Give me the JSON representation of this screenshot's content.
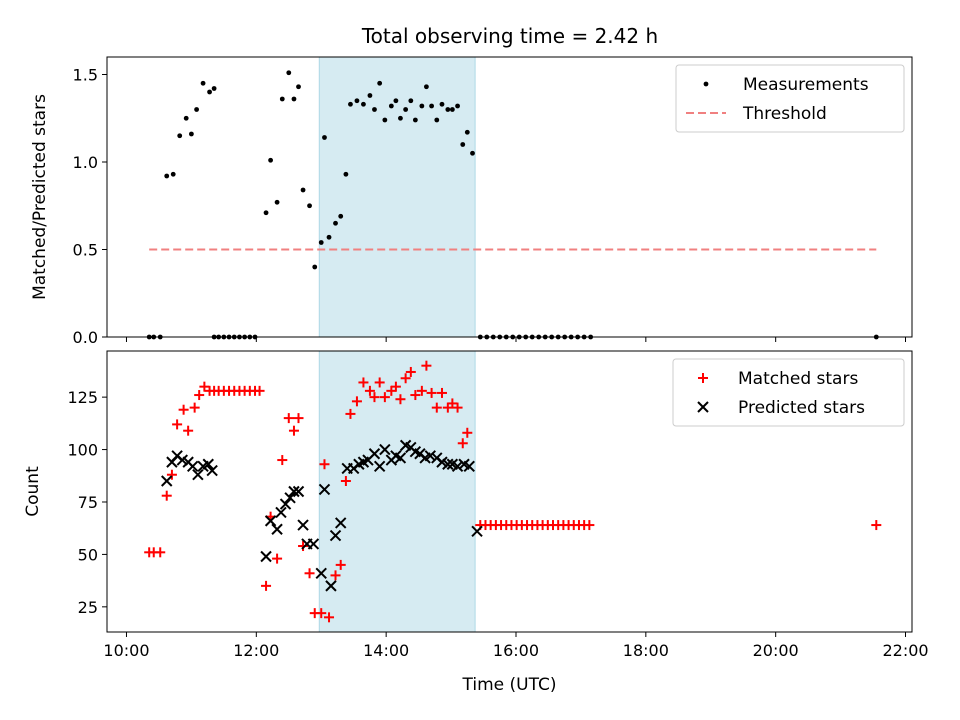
{
  "figure": {
    "title": "Total observing time = 2.42 h"
  },
  "chart_data": [
    {
      "type": "scatter",
      "ylabel": "Matched/Predicted stars",
      "xlabel": "",
      "xlim": [
        9.7,
        22.1
      ],
      "ylim": [
        0,
        1.6
      ],
      "x_ticks": [
        "10:00",
        "12:00",
        "14:00",
        "16:00",
        "18:00",
        "20:00",
        "22:00"
      ],
      "y_ticks": [
        "0.0",
        "0.5",
        "1.0",
        "1.5"
      ],
      "highlight_span": [
        12.97,
        15.37
      ],
      "highlight_color": "#add8e6",
      "legend_position": "upper right",
      "series": [
        {
          "name": "Measurements",
          "marker": "dot",
          "color": "#000000",
          "points": [
            [
              10.35,
              0.0
            ],
            [
              10.42,
              0.0
            ],
            [
              10.52,
              0.0
            ],
            [
              10.62,
              0.92
            ],
            [
              10.72,
              0.93
            ],
            [
              10.82,
              1.15
            ],
            [
              10.92,
              1.25
            ],
            [
              11.0,
              1.16
            ],
            [
              11.08,
              1.3
            ],
            [
              11.18,
              1.45
            ],
            [
              11.28,
              1.4
            ],
            [
              11.35,
              1.42
            ],
            [
              11.35,
              0.0
            ],
            [
              11.42,
              0.0
            ],
            [
              11.5,
              0.0
            ],
            [
              11.58,
              0.0
            ],
            [
              11.66,
              0.0
            ],
            [
              11.74,
              0.0
            ],
            [
              11.82,
              0.0
            ],
            [
              11.9,
              0.0
            ],
            [
              11.98,
              0.0
            ],
            [
              12.15,
              0.71
            ],
            [
              12.22,
              1.01
            ],
            [
              12.32,
              0.77
            ],
            [
              12.4,
              1.36
            ],
            [
              12.5,
              1.51
            ],
            [
              12.58,
              1.36
            ],
            [
              12.65,
              1.43
            ],
            [
              12.72,
              0.84
            ],
            [
              12.82,
              0.75
            ],
            [
              12.9,
              0.4
            ],
            [
              13.0,
              0.54
            ],
            [
              13.05,
              1.14
            ],
            [
              13.12,
              0.57
            ],
            [
              13.22,
              0.65
            ],
            [
              13.3,
              0.69
            ],
            [
              13.38,
              0.93
            ],
            [
              13.45,
              1.33
            ],
            [
              13.55,
              1.35
            ],
            [
              13.65,
              1.33
            ],
            [
              13.75,
              1.38
            ],
            [
              13.82,
              1.3
            ],
            [
              13.9,
              1.45
            ],
            [
              13.98,
              1.24
            ],
            [
              14.08,
              1.32
            ],
            [
              14.15,
              1.35
            ],
            [
              14.22,
              1.25
            ],
            [
              14.3,
              1.3
            ],
            [
              14.38,
              1.35
            ],
            [
              14.45,
              1.24
            ],
            [
              14.55,
              1.32
            ],
            [
              14.62,
              1.43
            ],
            [
              14.7,
              1.32
            ],
            [
              14.78,
              1.24
            ],
            [
              14.86,
              1.33
            ],
            [
              14.95,
              1.3
            ],
            [
              15.02,
              1.3
            ],
            [
              15.1,
              1.32
            ],
            [
              15.18,
              1.1
            ],
            [
              15.25,
              1.17
            ],
            [
              15.33,
              1.05
            ],
            [
              15.45,
              0.0
            ],
            [
              15.55,
              0.0
            ],
            [
              15.65,
              0.0
            ],
            [
              15.75,
              0.0
            ],
            [
              15.85,
              0.0
            ],
            [
              15.95,
              0.0
            ],
            [
              16.05,
              0.0
            ],
            [
              16.15,
              0.0
            ],
            [
              16.25,
              0.0
            ],
            [
              16.35,
              0.0
            ],
            [
              16.45,
              0.0
            ],
            [
              16.55,
              0.0
            ],
            [
              16.65,
              0.0
            ],
            [
              16.75,
              0.0
            ],
            [
              16.85,
              0.0
            ],
            [
              16.95,
              0.0
            ],
            [
              17.05,
              0.0
            ],
            [
              17.15,
              0.0
            ],
            [
              21.55,
              0.0
            ]
          ]
        },
        {
          "name": "Threshold",
          "marker": "dashed-line",
          "color": "#f08080",
          "points": [
            [
              10.35,
              0.5
            ],
            [
              21.55,
              0.5
            ]
          ]
        }
      ]
    },
    {
      "type": "scatter",
      "ylabel": "Count",
      "xlabel": "Time (UTC)",
      "xlim": [
        9.7,
        22.1
      ],
      "ylim": [
        13,
        147
      ],
      "x_ticks": [
        "10:00",
        "12:00",
        "14:00",
        "16:00",
        "18:00",
        "20:00",
        "22:00"
      ],
      "y_ticks": [
        "25",
        "50",
        "75",
        "100",
        "125"
      ],
      "highlight_span": [
        12.97,
        15.37
      ],
      "highlight_color": "#add8e6",
      "legend_position": "upper right",
      "series": [
        {
          "name": "Matched stars",
          "marker": "plus",
          "color": "#ff0000",
          "points": [
            [
              10.35,
              51
            ],
            [
              10.42,
              51
            ],
            [
              10.52,
              51
            ],
            [
              10.62,
              78
            ],
            [
              10.7,
              88
            ],
            [
              10.78,
              112
            ],
            [
              10.88,
              119
            ],
            [
              10.95,
              109
            ],
            [
              11.05,
              120
            ],
            [
              11.12,
              126
            ],
            [
              11.2,
              130
            ],
            [
              11.28,
              128
            ],
            [
              11.35,
              128
            ],
            [
              11.42,
              128
            ],
            [
              11.5,
              128
            ],
            [
              11.58,
              128
            ],
            [
              11.66,
              128
            ],
            [
              11.74,
              128
            ],
            [
              11.82,
              128
            ],
            [
              11.9,
              128
            ],
            [
              11.98,
              128
            ],
            [
              12.05,
              128
            ],
            [
              12.15,
              35
            ],
            [
              12.22,
              68
            ],
            [
              12.32,
              48
            ],
            [
              12.4,
              95
            ],
            [
              12.5,
              115
            ],
            [
              12.58,
              109
            ],
            [
              12.65,
              115
            ],
            [
              12.72,
              54
            ],
            [
              12.82,
              41
            ],
            [
              12.9,
              22
            ],
            [
              13.0,
              22
            ],
            [
              13.05,
              93
            ],
            [
              13.12,
              20
            ],
            [
              13.22,
              40
            ],
            [
              13.3,
              45
            ],
            [
              13.38,
              85
            ],
            [
              13.45,
              117
            ],
            [
              13.55,
              123
            ],
            [
              13.65,
              132
            ],
            [
              13.75,
              128
            ],
            [
              13.82,
              125
            ],
            [
              13.9,
              132
            ],
            [
              13.98,
              125
            ],
            [
              14.08,
              128
            ],
            [
              14.15,
              130
            ],
            [
              14.22,
              124
            ],
            [
              14.3,
              134
            ],
            [
              14.38,
              137
            ],
            [
              14.45,
              126
            ],
            [
              14.55,
              128
            ],
            [
              14.62,
              140
            ],
            [
              14.7,
              127
            ],
            [
              14.78,
              120
            ],
            [
              14.86,
              127
            ],
            [
              14.95,
              120
            ],
            [
              15.02,
              122
            ],
            [
              15.1,
              120
            ],
            [
              15.18,
              103
            ],
            [
              15.25,
              108
            ],
            [
              15.45,
              64
            ],
            [
              15.53,
              64
            ],
            [
              15.61,
              64
            ],
            [
              15.69,
              64
            ],
            [
              15.77,
              64
            ],
            [
              15.85,
              64
            ],
            [
              15.93,
              64
            ],
            [
              16.01,
              64
            ],
            [
              16.09,
              64
            ],
            [
              16.17,
              64
            ],
            [
              16.25,
              64
            ],
            [
              16.33,
              64
            ],
            [
              16.41,
              64
            ],
            [
              16.49,
              64
            ],
            [
              16.57,
              64
            ],
            [
              16.65,
              64
            ],
            [
              16.73,
              64
            ],
            [
              16.81,
              64
            ],
            [
              16.89,
              64
            ],
            [
              16.97,
              64
            ],
            [
              17.05,
              64
            ],
            [
              17.13,
              64
            ],
            [
              21.55,
              64
            ]
          ]
        },
        {
          "name": "Predicted stars",
          "marker": "x",
          "color": "#000000",
          "points": [
            [
              10.62,
              85
            ],
            [
              10.7,
              94
            ],
            [
              10.78,
              97
            ],
            [
              10.86,
              95
            ],
            [
              10.95,
              94
            ],
            [
              11.02,
              92
            ],
            [
              11.1,
              88
            ],
            [
              11.18,
              92
            ],
            [
              11.26,
              93
            ],
            [
              11.32,
              90
            ],
            [
              12.15,
              49
            ],
            [
              12.22,
              66
            ],
            [
              12.32,
              62
            ],
            [
              12.38,
              70
            ],
            [
              12.45,
              74
            ],
            [
              12.52,
              77
            ],
            [
              12.58,
              80
            ],
            [
              12.65,
              80
            ],
            [
              12.72,
              64
            ],
            [
              12.78,
              55
            ],
            [
              12.88,
              55
            ],
            [
              13.0,
              41
            ],
            [
              13.05,
              81
            ],
            [
              13.15,
              35
            ],
            [
              13.22,
              59
            ],
            [
              13.3,
              65
            ],
            [
              13.4,
              91
            ],
            [
              13.5,
              91
            ],
            [
              13.58,
              93
            ],
            [
              13.65,
              94
            ],
            [
              13.72,
              95
            ],
            [
              13.82,
              98
            ],
            [
              13.9,
              92
            ],
            [
              13.98,
              100
            ],
            [
              14.08,
              95
            ],
            [
              14.15,
              97
            ],
            [
              14.22,
              96
            ],
            [
              14.3,
              102
            ],
            [
              14.38,
              101
            ],
            [
              14.45,
              99
            ],
            [
              14.52,
              98
            ],
            [
              14.6,
              96
            ],
            [
              14.68,
              97
            ],
            [
              14.78,
              96
            ],
            [
              14.86,
              94
            ],
            [
              14.95,
              93
            ],
            [
              15.02,
              93
            ],
            [
              15.1,
              92
            ],
            [
              15.2,
              93
            ],
            [
              15.28,
              92
            ],
            [
              15.4,
              61
            ]
          ]
        }
      ]
    }
  ]
}
